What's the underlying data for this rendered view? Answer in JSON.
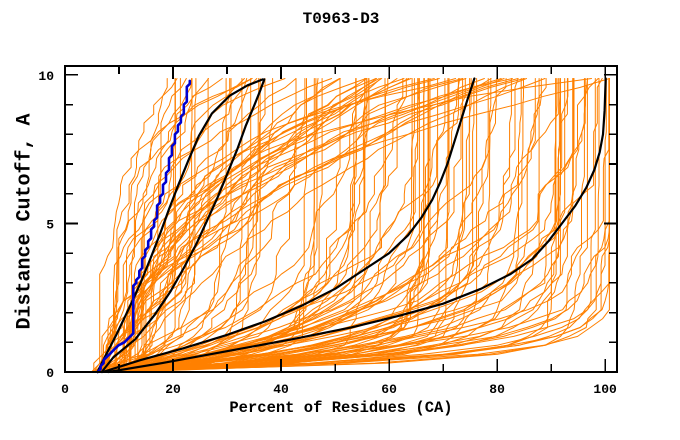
{
  "chart_data": {
    "type": "line",
    "title": "T0963-D3",
    "xlabel": "Percent of Residues (CA)",
    "ylabel": "Distance Cutoff, A",
    "xlim": [
      0,
      102.2
    ],
    "ylim": [
      0,
      10.3
    ],
    "x_axis_max_labeled": 100,
    "y_axis_max_labeled": 10,
    "x_major_ticks": [
      0,
      20,
      40,
      60,
      80,
      100
    ],
    "x_minor_step": 10,
    "y_major_ticks": [
      0,
      5,
      10
    ],
    "y_minor_step": 1,
    "grid": false,
    "legend": null,
    "colors": {
      "ensemble": "#ff8000",
      "highlight": "#000000",
      "selected": "#0000d0",
      "axis": "#000000",
      "background": "#ffffff"
    },
    "series": [
      {
        "name": "black-model-1",
        "color_role": "highlight",
        "width": 2.2,
        "mode": "line",
        "points": [
          [
            6,
            0
          ],
          [
            7.5,
            0.55
          ],
          [
            9.5,
            1.25
          ],
          [
            12,
            2.2
          ],
          [
            14,
            3.0
          ],
          [
            16,
            3.9
          ],
          [
            17.7,
            4.7
          ],
          [
            19.3,
            5.5
          ],
          [
            21,
            6.3
          ],
          [
            22.8,
            7.1
          ],
          [
            24.8,
            7.95
          ],
          [
            27.2,
            8.7
          ],
          [
            30.5,
            9.3
          ],
          [
            33.8,
            9.65
          ],
          [
            36.6,
            9.85
          ]
        ]
      },
      {
        "name": "black-model-2",
        "color_role": "highlight",
        "width": 2.2,
        "mode": "line",
        "points": [
          [
            6.8,
            0
          ],
          [
            9,
            0.5
          ],
          [
            13,
            1.1
          ],
          [
            16.5,
            1.9
          ],
          [
            19.5,
            2.7
          ],
          [
            22,
            3.5
          ],
          [
            24.3,
            4.3
          ],
          [
            26.3,
            5.1
          ],
          [
            28.3,
            5.9
          ],
          [
            30.1,
            6.7
          ],
          [
            31.9,
            7.5
          ],
          [
            33.5,
            8.3
          ],
          [
            35.1,
            9.0
          ],
          [
            36.2,
            9.5
          ],
          [
            36.9,
            9.85
          ]
        ]
      },
      {
        "name": "black-model-3",
        "color_role": "highlight",
        "width": 2.2,
        "mode": "line",
        "points": [
          [
            7,
            0
          ],
          [
            14,
            0.4
          ],
          [
            22,
            0.8
          ],
          [
            30,
            1.25
          ],
          [
            37,
            1.7
          ],
          [
            44,
            2.25
          ],
          [
            50,
            2.8
          ],
          [
            55,
            3.4
          ],
          [
            60,
            4.0
          ],
          [
            63.5,
            4.6
          ],
          [
            66,
            5.2
          ],
          [
            68,
            5.8
          ],
          [
            69.5,
            6.4
          ],
          [
            70.8,
            7.0
          ],
          [
            72,
            7.7
          ],
          [
            73.2,
            8.4
          ],
          [
            74.4,
            9.1
          ],
          [
            75.8,
            9.88
          ]
        ]
      },
      {
        "name": "black-model-4",
        "color_role": "highlight",
        "width": 2.2,
        "mode": "line",
        "points": [
          [
            8,
            0
          ],
          [
            18,
            0.3
          ],
          [
            30,
            0.7
          ],
          [
            42,
            1.1
          ],
          [
            53,
            1.5
          ],
          [
            62,
            1.9
          ],
          [
            70,
            2.3
          ],
          [
            77,
            2.8
          ],
          [
            82.5,
            3.3
          ],
          [
            86.5,
            3.8
          ],
          [
            89.5,
            4.4
          ],
          [
            92,
            5.0
          ],
          [
            94.5,
            5.6
          ],
          [
            96.5,
            6.2
          ],
          [
            98,
            6.8
          ],
          [
            99,
            7.4
          ],
          [
            99.6,
            8.0
          ],
          [
            99.9,
            8.8
          ],
          [
            100.1,
            9.88
          ]
        ]
      },
      {
        "name": "blue-model",
        "color_role": "selected",
        "width": 2.6,
        "mode": "step",
        "step_quantum": 0.55,
        "points": [
          [
            6.5,
            0
          ],
          [
            7.5,
            0.35
          ],
          [
            9,
            0.75
          ],
          [
            11.5,
            1.05
          ],
          [
            13,
            1.3
          ],
          [
            13,
            2.9
          ],
          [
            13.8,
            3.2
          ],
          [
            14.8,
            3.8
          ],
          [
            15.8,
            4.4
          ],
          [
            16.8,
            5.0
          ],
          [
            17.6,
            5.6
          ],
          [
            18.4,
            6.1
          ],
          [
            19.2,
            6.7
          ],
          [
            19.9,
            7.3
          ],
          [
            20.7,
            7.9
          ],
          [
            21.6,
            8.4
          ],
          [
            22.4,
            8.95
          ],
          [
            22.9,
            9.4
          ],
          [
            23.3,
            9.85
          ]
        ]
      }
    ],
    "ensemble": {
      "name": "server-model-curves",
      "color_role": "ensemble",
      "count": 140,
      "seed": 20963,
      "width": 1,
      "start_x_range": [
        4.5,
        12.5
      ],
      "final_x_range": [
        16,
        102
      ],
      "final_x_skew": 0.7,
      "x_clamp": 100.8,
      "y_top": 9.88,
      "y_step": 0.3
    }
  }
}
